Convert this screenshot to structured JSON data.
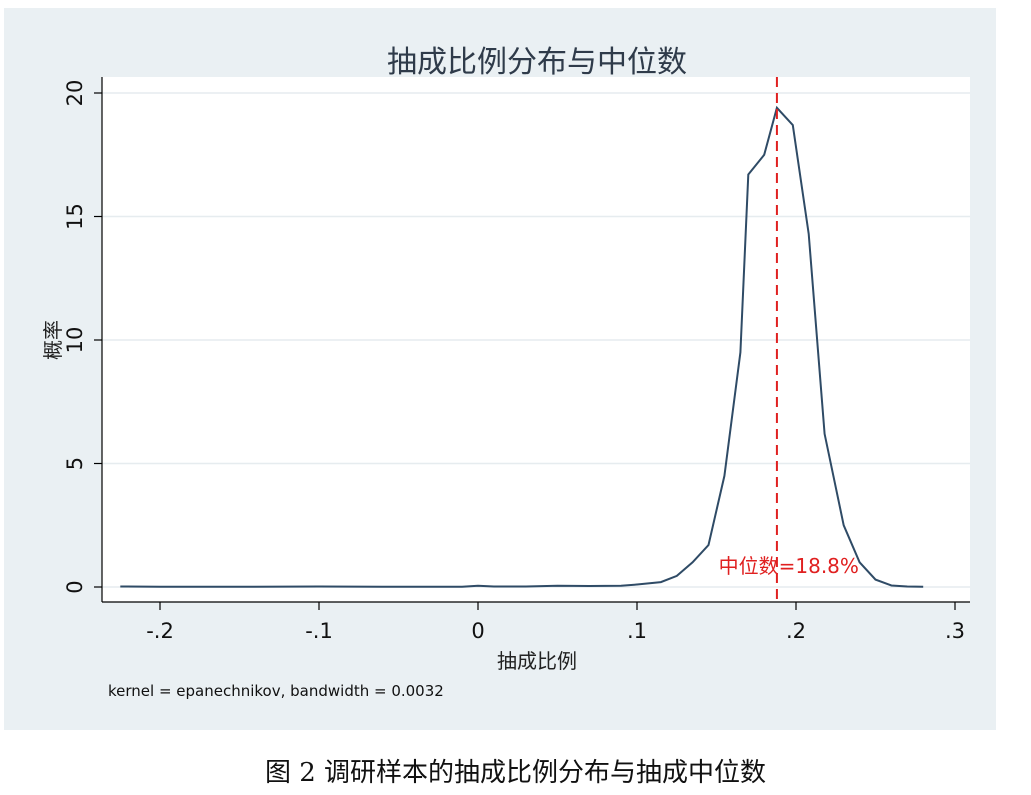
{
  "chart_data": {
    "type": "line",
    "title": "抽成比例分布与中位数",
    "xlabel": "抽成比例",
    "ylabel": "概率",
    "xlim": [
      -0.235,
      0.3
    ],
    "ylim": [
      0,
      20
    ],
    "xticks": [
      -0.2,
      -0.1,
      0,
      0.1,
      0.2,
      0.3
    ],
    "xtick_labels": [
      "-.2",
      "-.1",
      "0",
      ".1",
      ".2",
      ".3"
    ],
    "yticks": [
      0,
      5,
      10,
      15,
      20
    ],
    "ytick_labels": [
      "0",
      "5",
      "10",
      "15",
      "20"
    ],
    "grid": "horizontal",
    "series": [
      {
        "x": [
          -0.225,
          -0.2,
          -0.15,
          -0.1,
          -0.05,
          -0.01,
          0.0,
          0.01,
          0.03,
          0.05,
          0.07,
          0.09,
          0.1,
          0.115,
          0.125,
          0.135,
          0.145,
          0.155,
          0.165,
          0.17,
          0.18,
          0.188,
          0.198,
          0.208,
          0.218,
          0.23,
          0.24,
          0.25,
          0.26,
          0.27,
          0.28
        ],
        "y": [
          0.02,
          0.01,
          0.01,
          0.02,
          0.01,
          0.01,
          0.05,
          0.02,
          0.02,
          0.05,
          0.04,
          0.05,
          0.1,
          0.2,
          0.45,
          1.0,
          1.7,
          4.5,
          9.5,
          16.7,
          17.5,
          19.4,
          18.7,
          14.3,
          6.2,
          2.5,
          1.0,
          0.3,
          0.06,
          0.02,
          0.01
        ],
        "color": "#2f4b66"
      }
    ],
    "median": {
      "x": 0.188,
      "label": "中位数=18.8%",
      "color": "#e02020"
    },
    "note": "kernel = epanechnikov, bandwidth = 0.0032"
  },
  "caption": "图 2 调研样本的抽成比例分布与抽成中位数"
}
